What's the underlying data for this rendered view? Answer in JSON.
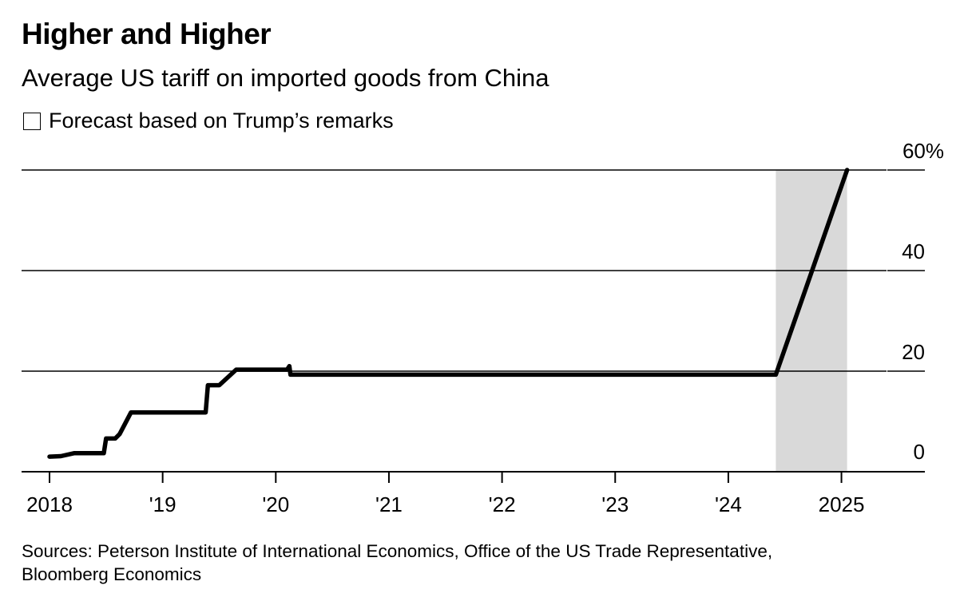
{
  "header": {
    "title": "Higher and Higher",
    "subtitle": "Average US tariff on imported goods from China"
  },
  "legend": {
    "forecast_label": "Forecast based on Trump’s remarks"
  },
  "footer": {
    "source_line1": "Sources: Peterson Institute of International Economics, Office of the US Trade Representative,",
    "source_line2": "Bloomberg Economics"
  },
  "colors": {
    "line": "#000000",
    "forecast_band": "#d9d9d9",
    "gridline": "#000000"
  },
  "chart_data": {
    "type": "line",
    "title": "Higher and Higher",
    "subtitle": "Average US tariff on imported goods from China",
    "xlabel": "",
    "ylabel": "",
    "xlim": [
      2017.75,
      2025.72
    ],
    "ylim": [
      0,
      60
    ],
    "grid": true,
    "y_ticks": [
      {
        "value": 0,
        "label": "0"
      },
      {
        "value": 20,
        "label": "20"
      },
      {
        "value": 40,
        "label": "40"
      },
      {
        "value": 60,
        "label": "60%"
      }
    ],
    "x_ticks": [
      {
        "value": 2018,
        "label": "2018"
      },
      {
        "value": 2019,
        "label": "'19"
      },
      {
        "value": 2020,
        "label": "'20"
      },
      {
        "value": 2021,
        "label": "'21"
      },
      {
        "value": 2022,
        "label": "'22"
      },
      {
        "value": 2023,
        "label": "'23"
      },
      {
        "value": 2024,
        "label": "'24"
      },
      {
        "value": 2025,
        "label": "2025"
      }
    ],
    "forecast_band": {
      "label": "Forecast based on Trump’s remarks",
      "x_start": 2024.42,
      "x_end": 2025.05
    },
    "series": [
      {
        "x": [
          2018.0,
          2018.1,
          2018.22,
          2018.48,
          2018.5,
          2018.58,
          2018.62,
          2018.72,
          2018.8,
          2019.0,
          2019.2,
          2019.38,
          2019.4,
          2019.5,
          2019.65,
          2019.85,
          2020.1,
          2020.12,
          2020.13,
          2021.0,
          2022.0,
          2023.0,
          2024.0,
          2024.42,
          2025.05
        ],
        "values": [
          3,
          3.1,
          3.7,
          3.7,
          6.6,
          6.6,
          7.5,
          11.8,
          11.8,
          11.8,
          11.8,
          11.8,
          17.2,
          17.2,
          20.3,
          20.3,
          20.3,
          21,
          19.3,
          19.3,
          19.3,
          19.3,
          19.3,
          19.3,
          60
        ]
      }
    ]
  }
}
